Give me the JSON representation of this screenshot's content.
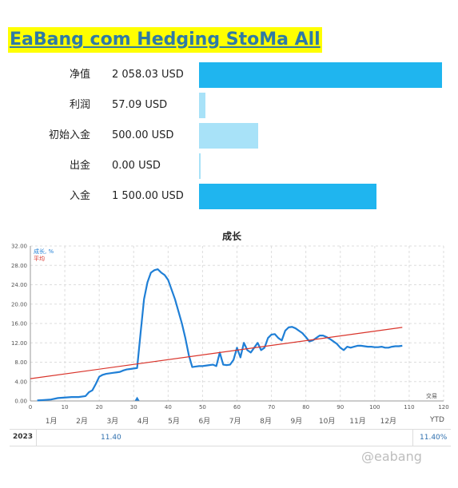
{
  "header": {
    "title": "EaBang com Hedging StoMa All"
  },
  "stats": [
    {
      "label": "净值",
      "value": "2 058.03 USD",
      "amount": 2058.03,
      "color": "#1fb5ef"
    },
    {
      "label": "利润",
      "value": "57.09 USD",
      "amount": 57.09,
      "color": "#a8e2f8"
    },
    {
      "label": "初始入金",
      "value": "500.00 USD",
      "amount": 500.0,
      "color": "#a8e2f8"
    },
    {
      "label": "出金",
      "value": "0.00 USD",
      "amount": 0.0,
      "color": "#a8e2f8"
    },
    {
      "label": "入金",
      "value": "1 500.00 USD",
      "amount": 1500.0,
      "color": "#1fb5ef"
    }
  ],
  "chart_data": {
    "type": "line",
    "title": "成长",
    "xlabel": "交易",
    "ylabel": "",
    "xlim": [
      0,
      120
    ],
    "ylim": [
      0,
      32
    ],
    "x_ticks": [
      0,
      10,
      20,
      30,
      40,
      50,
      60,
      70,
      80,
      90,
      100,
      110,
      120
    ],
    "y_ticks": [
      "0.00",
      "4.00",
      "8.00",
      "12.00",
      "16.00",
      "20.00",
      "24.00",
      "28.00",
      "32.00"
    ],
    "grid": true,
    "legend_position": "top-left",
    "series": [
      {
        "name": "成长, %",
        "color": "#1f7fd6",
        "x": [
          2,
          4,
          6,
          8,
          10,
          12,
          14,
          16,
          17,
          18,
          19,
          20,
          21,
          22,
          23,
          24,
          25,
          26,
          27,
          28,
          29,
          30,
          31,
          32,
          33,
          34,
          35,
          36,
          37,
          38,
          39,
          40,
          41,
          42,
          43,
          44,
          45,
          46,
          47,
          48,
          49,
          50,
          51,
          52,
          53,
          54,
          55,
          56,
          57,
          58,
          59,
          60,
          61,
          62,
          63,
          64,
          65,
          66,
          67,
          68,
          69,
          70,
          71,
          72,
          73,
          74,
          75,
          76,
          77,
          78,
          79,
          80,
          81,
          82,
          83,
          84,
          85,
          86,
          87,
          88,
          89,
          90,
          91,
          92,
          93,
          94,
          95,
          96,
          97,
          98,
          99,
          100,
          101,
          102,
          103,
          104,
          105,
          106,
          107,
          108
        ],
        "y": [
          0.1,
          0.2,
          0.3,
          0.6,
          0.7,
          0.8,
          0.8,
          1.0,
          1.8,
          2.2,
          3.5,
          5.0,
          5.4,
          5.6,
          5.7,
          5.8,
          5.9,
          6.0,
          6.3,
          6.5,
          6.6,
          6.7,
          6.8,
          14.0,
          21.0,
          24.5,
          26.5,
          27.0,
          27.2,
          26.5,
          26.0,
          25.0,
          23.0,
          21.0,
          18.5,
          16.0,
          13.0,
          9.5,
          7.0,
          7.1,
          7.2,
          7.2,
          7.3,
          7.4,
          7.5,
          7.2,
          10.0,
          7.5,
          7.4,
          7.5,
          8.5,
          11.0,
          9.0,
          12.0,
          10.5,
          10.0,
          11.0,
          12.0,
          10.5,
          11.0,
          13.0,
          13.7,
          13.8,
          13.0,
          12.5,
          14.5,
          15.2,
          15.3,
          15.0,
          14.5,
          14.0,
          13.2,
          12.3,
          12.5,
          13.0,
          13.5,
          13.5,
          13.2,
          12.8,
          12.3,
          11.8,
          11.0,
          10.5,
          11.2,
          11.0,
          11.2,
          11.4,
          11.4,
          11.3,
          11.2,
          11.2,
          11.1,
          11.1,
          11.2,
          11.0,
          11.0,
          11.2,
          11.3,
          11.3,
          11.4
        ]
      },
      {
        "name": "平均",
        "color": "#d9342b",
        "x": [
          0,
          108
        ],
        "y": [
          4.6,
          15.2
        ]
      }
    ],
    "markers": [
      {
        "x": 31,
        "y": 0.4,
        "color": "#1f7fd6"
      }
    ]
  },
  "months": [
    "1月",
    "2月",
    "3月",
    "4月",
    "5月",
    "6月",
    "7月",
    "8月",
    "9月",
    "10月",
    "11月",
    "12月"
  ],
  "ytd_label": "YTD",
  "year_row": {
    "year": "2023",
    "march_value": "11.40",
    "ytd_value": "11.40%"
  },
  "watermark": "@eabang"
}
